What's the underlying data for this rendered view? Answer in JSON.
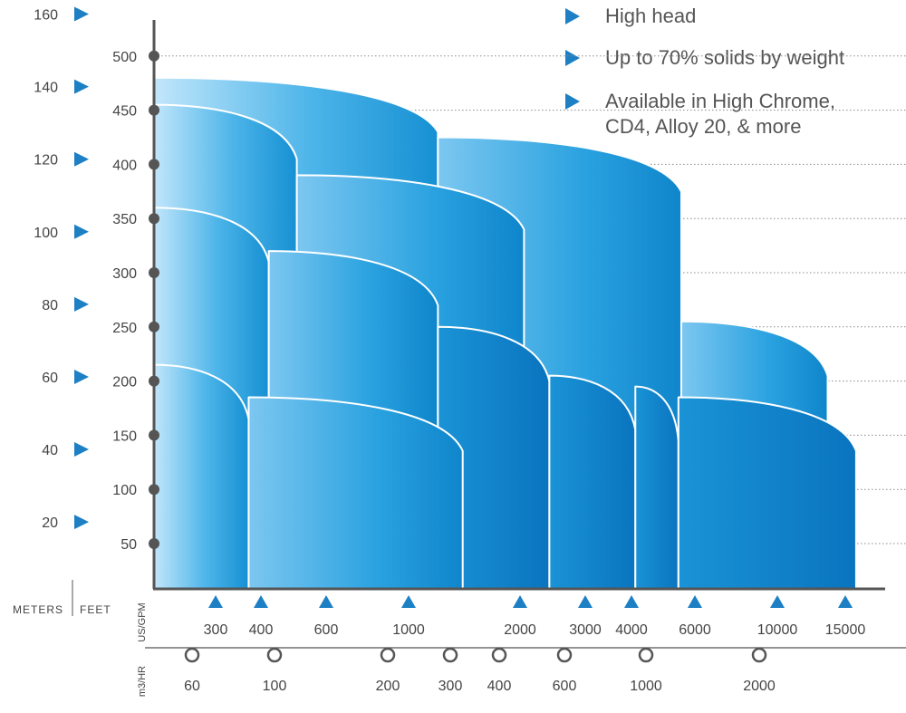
{
  "features": [
    {
      "lines": [
        "High head"
      ]
    },
    {
      "lines": [
        "Up to 70% solids by weight"
      ]
    },
    {
      "lines": [
        "Available in High Chrome,",
        "CD4, Alloy 20, & more"
      ]
    }
  ],
  "chart_data": {
    "type": "area",
    "title": "",
    "axes": {
      "meters": {
        "label": "METERS",
        "ticks": [
          20,
          40,
          60,
          80,
          100,
          120,
          140,
          160
        ]
      },
      "feet": {
        "label": "FEET",
        "ticks": [
          50,
          100,
          150,
          200,
          250,
          300,
          350,
          400,
          450,
          500
        ]
      },
      "us_gpm": {
        "label": "US/GPM",
        "ticks": [
          300,
          400,
          600,
          1000,
          2000,
          3000,
          4000,
          6000,
          10000,
          15000
        ]
      },
      "m3_hr": {
        "label": "m3/HR",
        "ticks": [
          60,
          100,
          200,
          300,
          400,
          600,
          1000,
          2000
        ]
      }
    },
    "grid": true,
    "colors": {
      "light": "#b8e0f8",
      "mid": "#3eaee6",
      "dark": "#0c78c4",
      "marker": "#1d7fc4",
      "dot": "#555555"
    },
    "regions": [
      {
        "row": "top",
        "flow_gpm": [
          90,
          1200
        ],
        "head_ft": [
          0,
          480
        ]
      },
      {
        "row": "top",
        "flow_gpm": [
          1200,
          5500
        ],
        "head_ft": [
          0,
          425
        ]
      },
      {
        "row": "upper",
        "flow_gpm": [
          90,
          500
        ],
        "head_ft": [
          0,
          455
        ]
      },
      {
        "row": "upper",
        "flow_gpm": [
          500,
          2050
        ],
        "head_ft": [
          0,
          390
        ]
      },
      {
        "row": "middle",
        "flow_gpm": [
          90,
          420
        ],
        "head_ft": [
          0,
          360
        ]
      },
      {
        "row": "middle",
        "flow_gpm": [
          420,
          1200
        ],
        "head_ft": [
          0,
          320
        ]
      },
      {
        "row": "middle",
        "flow_gpm": [
          1200,
          2400
        ],
        "head_ft": [
          0,
          250
        ]
      },
      {
        "row": "right",
        "flow_gpm": [
          5500,
          13500
        ],
        "head_ft": [
          0,
          255
        ]
      },
      {
        "row": "bottom",
        "flow_gpm": [
          90,
          370
        ],
        "head_ft": [
          0,
          215
        ]
      },
      {
        "row": "bottom",
        "flow_gpm": [
          370,
          1400
        ],
        "head_ft": [
          0,
          185
        ]
      },
      {
        "row": "bottom",
        "flow_gpm": [
          2400,
          4100
        ],
        "head_ft": [
          0,
          205
        ]
      },
      {
        "row": "bottom",
        "flow_gpm": [
          4100,
          5400
        ],
        "head_ft": [
          0,
          195
        ]
      },
      {
        "row": "bottom",
        "flow_gpm": [
          5400,
          16000
        ],
        "head_ft": [
          0,
          185
        ]
      }
    ]
  }
}
